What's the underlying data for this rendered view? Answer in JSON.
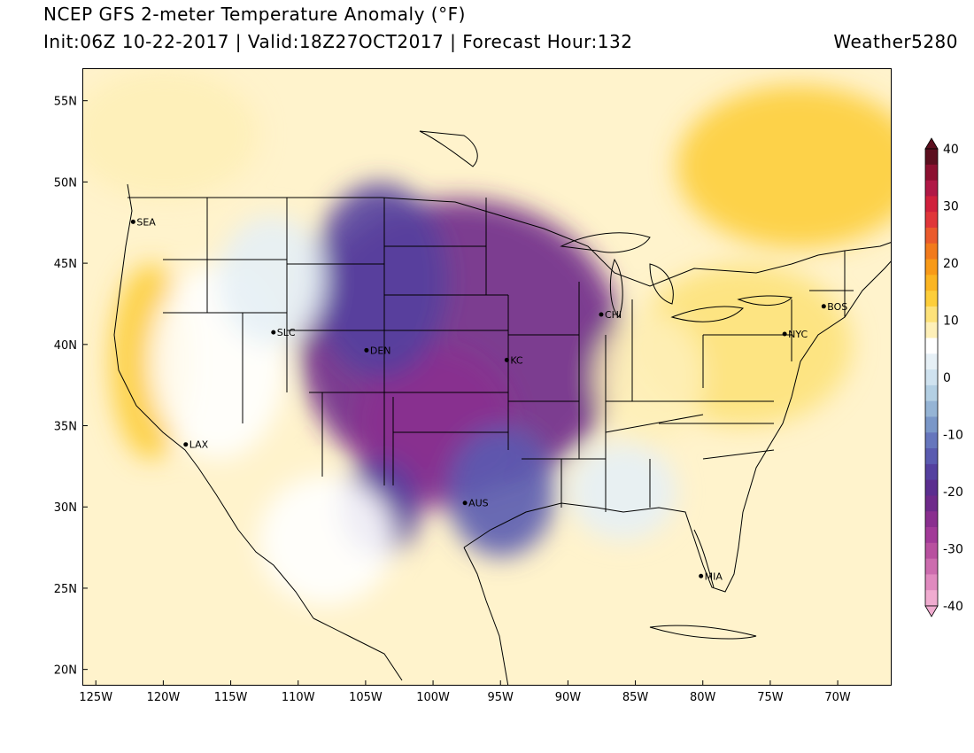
{
  "header": {
    "title": "NCEP GFS 2-meter Temperature Anomaly (°F)",
    "subtitle": "Init:06Z 10-22-2017 | Valid:18Z27OCT2017 | Forecast Hour:132",
    "brand": "Weather5280"
  },
  "map": {
    "projection": "lat-lon",
    "lon_range": [
      -126,
      -66
    ],
    "lat_range": [
      19,
      57
    ],
    "lon_ticks": [
      "125W",
      "120W",
      "115W",
      "110W",
      "105W",
      "100W",
      "95W",
      "90W",
      "85W",
      "80W",
      "75W",
      "70W"
    ],
    "lat_ticks": [
      "55N",
      "50N",
      "45N",
      "40N",
      "35N",
      "30N",
      "25N",
      "20N"
    ],
    "cities": [
      {
        "name": "SEA",
        "lon": -122.3,
        "lat": 47.6
      },
      {
        "name": "SLC",
        "lon": -111.9,
        "lat": 40.8
      },
      {
        "name": "DEN",
        "lon": -105.0,
        "lat": 39.7
      },
      {
        "name": "LAX",
        "lon": -118.4,
        "lat": 33.9
      },
      {
        "name": "KC",
        "lon": -94.6,
        "lat": 39.1
      },
      {
        "name": "AUS",
        "lon": -97.7,
        "lat": 30.3
      },
      {
        "name": "CHI",
        "lon": -87.6,
        "lat": 41.9
      },
      {
        "name": "NYC",
        "lon": -74.0,
        "lat": 40.7
      },
      {
        "name": "BOS",
        "lon": -71.1,
        "lat": 42.4
      },
      {
        "name": "MIA",
        "lon": -80.2,
        "lat": 25.8
      }
    ]
  },
  "colorbar": {
    "labels": [
      "40",
      "30",
      "20",
      "10",
      "0",
      "-10",
      "-20",
      "-30",
      "-40"
    ],
    "colors": [
      "#5c0f1f",
      "#8c1030",
      "#b01846",
      "#d0203c",
      "#e0363a",
      "#ea5a2c",
      "#f27a1c",
      "#f89a18",
      "#fbb522",
      "#fdce3a",
      "#fde27a",
      "#fef0b8",
      "#ffffff",
      "#e6f0f6",
      "#cfe2ef",
      "#b3cfe3",
      "#95b4d5",
      "#7a97c8",
      "#6676bd",
      "#5a5bb0",
      "#54409f",
      "#5b2e8f",
      "#6e2a8a",
      "#8a2f8f",
      "#a23a98",
      "#b8509f",
      "#cc6cae",
      "#e08abf",
      "#f0acd0"
    ]
  },
  "field_anomalies": [
    {
      "lon": -98,
      "lat": 40,
      "rx": 12,
      "ry": 9,
      "value": -22
    },
    {
      "lon": -100,
      "lat": 35,
      "rx": 6,
      "ry": 5,
      "value": -25
    },
    {
      "lon": -104,
      "lat": 44,
      "rx": 5,
      "ry": 6,
      "value": -16
    },
    {
      "lon": -95,
      "lat": 31,
      "rx": 4,
      "ry": 4,
      "value": -14
    },
    {
      "lon": -104,
      "lat": 30,
      "rx": 3,
      "ry": 3,
      "value": -18
    },
    {
      "lon": -120,
      "lat": 53,
      "rx": 7,
      "ry": 4,
      "value": 10
    },
    {
      "lon": -121,
      "lat": 39,
      "rx": 3,
      "ry": 6,
      "value": 13
    },
    {
      "lon": -116,
      "lat": 39,
      "rx": 5,
      "ry": 6,
      "value": 6
    },
    {
      "lon": -112,
      "lat": 44,
      "rx": 4,
      "ry": 4,
      "value": 4
    },
    {
      "lon": -77,
      "lat": 40,
      "rx": 8,
      "ry": 5,
      "value": 11
    },
    {
      "lon": -73,
      "lat": 51,
      "rx": 9,
      "ry": 5,
      "value": 13
    },
    {
      "lon": -84,
      "lat": 38,
      "rx": 4,
      "ry": 4,
      "value": 9
    },
    {
      "lon": -86,
      "lat": 31,
      "rx": 4,
      "ry": 3,
      "value": 3
    },
    {
      "lon": -108,
      "lat": 28,
      "rx": 5,
      "ry": 4,
      "value": 5
    }
  ]
}
